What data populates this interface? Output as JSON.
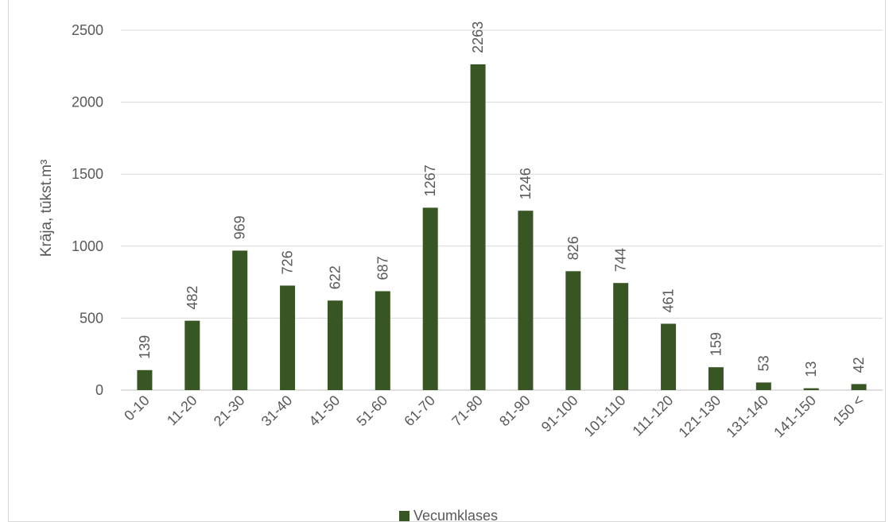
{
  "chart_data": {
    "type": "bar",
    "categories": [
      "0-10",
      "11-20",
      "21-30",
      "31-40",
      "41-50",
      "51-60",
      "61-70",
      "71-80",
      "81-90",
      "91-100",
      "101-110",
      "111-120",
      "121-130",
      "131-140",
      "141-150",
      "150 <"
    ],
    "series": [
      {
        "name": "Vecumklases",
        "values": [
          139,
          482,
          969,
          726,
          622,
          687,
          1267,
          2263,
          1246,
          826,
          744,
          461,
          159,
          53,
          13,
          42
        ],
        "color": "#375623"
      }
    ],
    "ylabel": "Krāja, tūkst.m³",
    "xlabel": "",
    "ylim": [
      0,
      2500
    ],
    "yticks": [
      0,
      500,
      1000,
      1500,
      2000,
      2500
    ],
    "grid": true,
    "legend_position": "bottom",
    "data_labels": true
  }
}
